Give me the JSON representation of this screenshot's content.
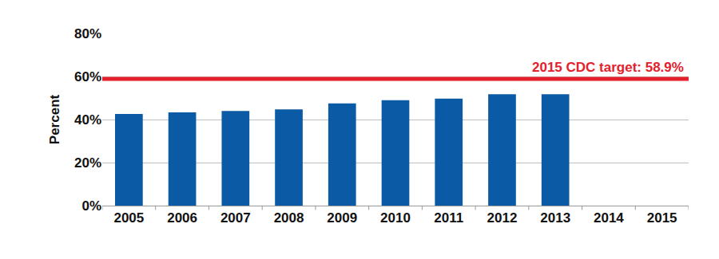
{
  "chart_data": {
    "type": "bar",
    "categories": [
      "2005",
      "2006",
      "2007",
      "2008",
      "2009",
      "2010",
      "2011",
      "2012",
      "2013",
      "2014",
      "2015"
    ],
    "values": [
      42.6,
      43.3,
      44.0,
      44.7,
      47.5,
      49.0,
      49.7,
      51.8,
      51.8,
      null,
      null
    ],
    "color": "#0b5aa6",
    "y_label": "Percent",
    "ylim": [
      0,
      80
    ],
    "yticks": [
      {
        "value": 0,
        "label": "0%"
      },
      {
        "value": 20,
        "label": "20%"
      },
      {
        "value": 40,
        "label": "40%"
      },
      {
        "value": 60,
        "label": "60%"
      },
      {
        "value": 80,
        "label": "80%"
      }
    ],
    "grid": true,
    "reference_line": {
      "value": 58.9,
      "label": "2015 CDC target: 58.9%",
      "color": "#e3202b"
    }
  }
}
